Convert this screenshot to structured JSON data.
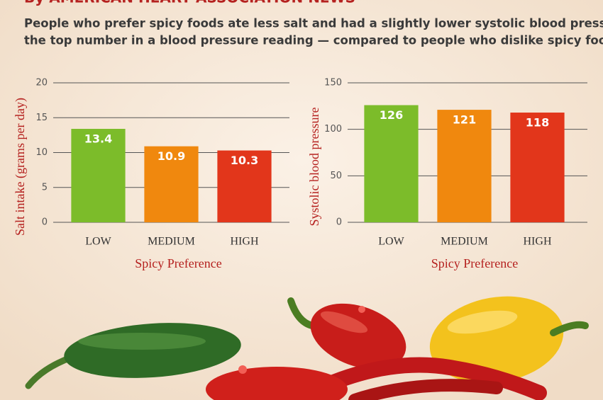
{
  "header": {
    "byline": "By AMERICAN HEART ASSOCIATION NEWS",
    "intro": [
      "People who prefer spicy foods ate less salt and had a slightly lower systolic blood pressure —",
      "the top number in a blood pressure reading — compared to people who dislike spicy foods ."
    ]
  },
  "chart_data": [
    {
      "type": "bar",
      "categories": [
        "LOW",
        "MEDIUM",
        "HIGH"
      ],
      "values": [
        13.4,
        10.9,
        10.3
      ],
      "colors": [
        "#7cbc2a",
        "#f0880e",
        "#e2361b"
      ],
      "y_label": "Salt intake (grams per day)",
      "x_label": "Spicy Preference",
      "ylim": [
        0,
        20
      ],
      "yticks": [
        0,
        5,
        10,
        15,
        20
      ],
      "grid": true
    },
    {
      "type": "bar",
      "categories": [
        "LOW",
        "MEDIUM",
        "HIGH"
      ],
      "values": [
        126,
        121,
        118
      ],
      "colors": [
        "#7cbc2a",
        "#f0880e",
        "#e2361b"
      ],
      "y_label": "Systolic blood pressure",
      "x_label": "Spicy Preference",
      "ylim": [
        0,
        150
      ],
      "yticks": [
        0,
        50,
        100,
        150
      ],
      "grid": true
    }
  ]
}
